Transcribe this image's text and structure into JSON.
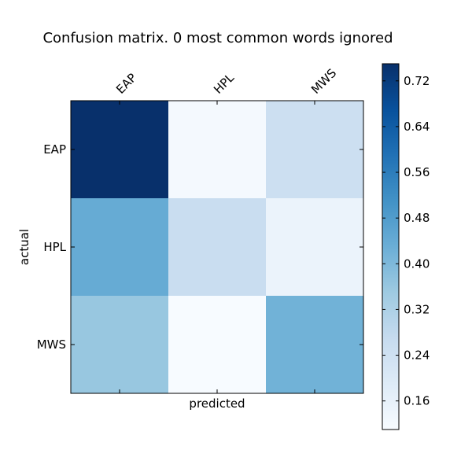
{
  "chart_data": {
    "type": "heatmap",
    "title": "Confusion matrix. 0 most common words ignored",
    "xlabel": "predicted",
    "ylabel": "actual",
    "x_categories": [
      "EAP",
      "HPL",
      "MWS"
    ],
    "y_categories": [
      "EAP",
      "HPL",
      "MWS"
    ],
    "values": [
      [
        0.75,
        0.12,
        0.25
      ],
      [
        0.44,
        0.26,
        0.15
      ],
      [
        0.36,
        0.11,
        0.42
      ]
    ],
    "colormap": "Blues",
    "colorbar": {
      "min": 0.11,
      "max": 0.75,
      "ticks": [
        0.16,
        0.24,
        0.32,
        0.4,
        0.48,
        0.56,
        0.64,
        0.72
      ],
      "tick_labels": [
        "0.16",
        "0.24",
        "0.32",
        "0.40",
        "0.48",
        "0.56",
        "0.64",
        "0.72"
      ]
    },
    "x_tick_position": "top",
    "x_tick_rotation_deg": 45,
    "grid": false
  }
}
